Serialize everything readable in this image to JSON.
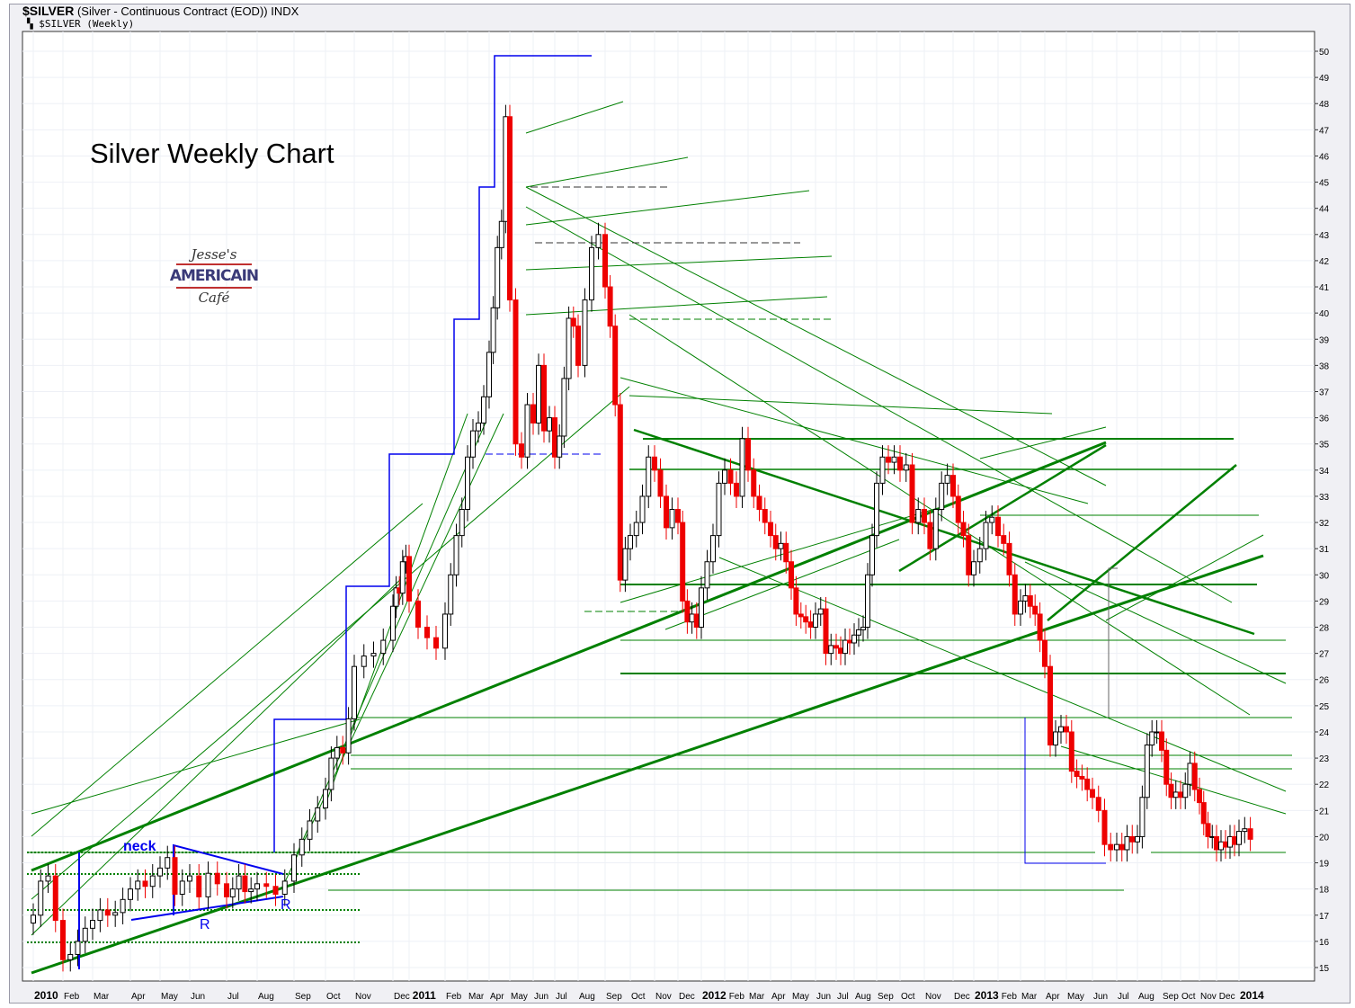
{
  "header": {
    "symbol": "$SILVER",
    "description": "(Silver - Continuous Contract (EOD)) INDX",
    "subtitle": "$SILVER (Weekly)"
  },
  "logo": {
    "line1": "Jesse's",
    "line2": "AMERICAIN",
    "line3": "Café"
  },
  "chart_data": {
    "type": "candlestick",
    "title": "Silver Weekly Chart",
    "annotations": {
      "neck": "neck",
      "r1": "R",
      "r2": "R"
    },
    "ylim": [
      15,
      50
    ],
    "y_ticks": [
      15,
      16,
      17,
      18,
      19,
      20,
      21,
      22,
      23,
      24,
      25,
      26,
      27,
      28,
      29,
      30,
      31,
      32,
      33,
      34,
      35,
      36,
      37,
      38,
      39,
      40,
      41,
      42,
      43,
      44,
      45,
      46,
      47,
      48,
      49,
      50
    ],
    "x_ticks": [
      {
        "label": "2010",
        "week": 0,
        "bold": true
      },
      {
        "label": "Feb",
        "week": 4
      },
      {
        "label": "Mar",
        "week": 8
      },
      {
        "label": "Apr",
        "week": 13
      },
      {
        "label": "May",
        "week": 17
      },
      {
        "label": "Jun",
        "week": 21
      },
      {
        "label": "Jul",
        "week": 25
      },
      {
        "label": "Aug",
        "week": 30
      },
      {
        "label": "Sep",
        "week": 34
      },
      {
        "label": "Oct",
        "week": 38
      },
      {
        "label": "Nov",
        "week": 43
      },
      {
        "label": "Dec",
        "week": 47
      },
      {
        "label": "2011",
        "week": 52,
        "bold": true
      },
      {
        "label": "Feb",
        "week": 56
      },
      {
        "label": "Mar",
        "week": 60
      },
      {
        "label": "Apr",
        "week": 64
      },
      {
        "label": "May",
        "week": 69
      },
      {
        "label": "Jun",
        "week": 73
      },
      {
        "label": "Jul",
        "week": 77
      },
      {
        "label": "Aug",
        "week": 82
      },
      {
        "label": "Sep",
        "week": 86
      },
      {
        "label": "Oct",
        "week": 91
      },
      {
        "label": "Nov",
        "week": 95
      },
      {
        "label": "Dec",
        "week": 99
      },
      {
        "label": "2012",
        "week": 104,
        "bold": true
      },
      {
        "label": "Feb",
        "week": 108
      },
      {
        "label": "Mar",
        "week": 112
      },
      {
        "label": "Apr",
        "week": 116
      },
      {
        "label": "May",
        "week": 120
      },
      {
        "label": "Jun",
        "week": 125
      },
      {
        "label": "Jul",
        "week": 129
      },
      {
        "label": "Aug",
        "week": 133
      },
      {
        "label": "Sep",
        "week": 138
      },
      {
        "label": "Oct",
        "week": 142
      },
      {
        "label": "Nov",
        "week": 146
      },
      {
        "label": "Dec",
        "week": 151
      },
      {
        "label": "2013",
        "week": 155,
        "bold": true
      },
      {
        "label": "Feb",
        "week": 159
      },
      {
        "label": "Mar",
        "week": 163
      },
      {
        "label": "Apr",
        "week": 168
      },
      {
        "label": "May",
        "week": 172
      },
      {
        "label": "Jun",
        "week": 177
      },
      {
        "label": "Jul",
        "week": 181
      },
      {
        "label": "Aug",
        "week": 185
      },
      {
        "label": "Sep",
        "week": 190
      },
      {
        "label": "Oct",
        "week": 194
      },
      {
        "label": "Nov",
        "week": 198
      },
      {
        "label": "Dec",
        "week": 202
      },
      {
        "label": "2014",
        "week": 207,
        "bold": true
      }
    ],
    "weekly_close": [
      17.0,
      18.3,
      18.5,
      16.8,
      15.3,
      15.5,
      16.0,
      16.5,
      16.8,
      17.2,
      17.0,
      17.1,
      17.6,
      18.0,
      18.3,
      18.1,
      18.5,
      18.8,
      19.2,
      17.8,
      18.3,
      18.5,
      17.7,
      18.6,
      18.2,
      17.7,
      18.0,
      18.5,
      17.9,
      18.0,
      18.2,
      18.1,
      17.8,
      18.3,
      19.3,
      19.9,
      20.6,
      21.1,
      21.8,
      23.0,
      23.4,
      23.2,
      24.5,
      26.5,
      26.9,
      27.0,
      27.5,
      28.8,
      29.5,
      29.3,
      30.5,
      30.7,
      29.0,
      28.0,
      27.6,
      27.2,
      28.5,
      30.0,
      31.5,
      32.5,
      34.5,
      35.5,
      35.8,
      36.8,
      38.5,
      40.2,
      42.5,
      43.5,
      47.5,
      40.5,
      35.0,
      34.5,
      36.5,
      35.8,
      38.0,
      35.5,
      36.0,
      34.5,
      35.3,
      37.5,
      39.8,
      39.5,
      38.0,
      40.5,
      42.5,
      43.0,
      41.0,
      39.5,
      36.5,
      29.8,
      31.0,
      31.5,
      32.0,
      33.0,
      34.5,
      34.0,
      33.0,
      31.8,
      32.5,
      32.0,
      29.0,
      28.2,
      28.5,
      28.0,
      29.5,
      30.5,
      31.5,
      33.5,
      34.0,
      33.5,
      33.0,
      35.2,
      34.0,
      33.0,
      32.5,
      32.0,
      31.5,
      31.0,
      31.2,
      30.5,
      29.5,
      28.5,
      28.4,
      28.2,
      28.0,
      28.5,
      28.7,
      27.0,
      27.3,
      27.2,
      27.0,
      27.5,
      27.4,
      27.7,
      27.9,
      28.0,
      30.0,
      31.5,
      33.5,
      34.5,
      34.3,
      34.5,
      34.0,
      34.2,
      32.0,
      32.5,
      32.0,
      31.0,
      32.5,
      33.5,
      33.8,
      33.0,
      32.0,
      31.5,
      30.0,
      30.5,
      31.0,
      32.0,
      32.2,
      31.5,
      31.2,
      30.0,
      28.5,
      29.0,
      29.2,
      28.8,
      28.5,
      27.5,
      26.5,
      23.5,
      24.0,
      24.2,
      24.0,
      22.5,
      22.3,
      22.2,
      21.8,
      21.5,
      21.0,
      19.7,
      19.5,
      19.7,
      19.5,
      20.0,
      19.8,
      20.0,
      21.5,
      23.5,
      24.0,
      24.0,
      23.3,
      22.0,
      21.5,
      21.7,
      21.5,
      22.0,
      22.8,
      21.8,
      21.3,
      20.5,
      20.0,
      20.0,
      19.5,
      19.8,
      19.6,
      20.0,
      19.7,
      20.2,
      20.3,
      19.9
    ],
    "colors": {
      "up": "#ffffff",
      "down": "#ee0000",
      "trendline": "#008000",
      "pattern": "#0000ee"
    },
    "grid": true
  }
}
